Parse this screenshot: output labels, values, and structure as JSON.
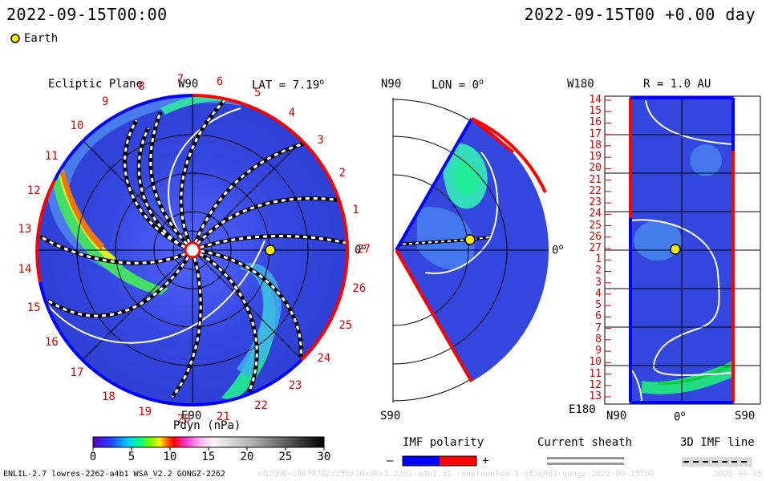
{
  "header": {
    "datetime_left": "2022-09-15T00:00",
    "datetime_right": "2022-09-15T00 +0.00 day",
    "earth_label": "Earth"
  },
  "colors": {
    "disk_bg": "#3344dd",
    "cme_core": "#cc6600",
    "sector_red": "#ff0000",
    "sector_blue": "#0000ff",
    "earth_fill": "#ffee00"
  },
  "chart_data": [
    {
      "type": "heatmap",
      "title": "Ecliptic Plane",
      "top_label": "W90",
      "bottom_label": "E90",
      "right_label": "0",
      "lat_label": "LAT = 7.19",
      "degree_mark": "o",
      "sector_labels": [
        "1",
        "2",
        "3",
        "4",
        "5",
        "6",
        "7",
        "8",
        "9",
        "10",
        "11",
        "12",
        "13",
        "14",
        "15",
        "16",
        "17",
        "18",
        "19",
        "20",
        "21",
        "22",
        "23",
        "24",
        "25",
        "26",
        "27"
      ],
      "earth_position": {
        "radius_au": 1.0,
        "longitude_deg": 0
      }
    },
    {
      "type": "heatmap",
      "title": "LON = 0",
      "degree_mark": "o",
      "top_label": "N90",
      "bottom_label": "S90",
      "right_label": "0"
    },
    {
      "type": "heatmap",
      "title": "R = 1.0 AU",
      "degree_mark": "o",
      "top_left_label": "W180",
      "bottom_left_label": "E180",
      "y_ticks": [
        "14",
        "15",
        "16",
        "17",
        "18",
        "19",
        "20",
        "21",
        "22",
        "23",
        "24",
        "25",
        "26",
        "27",
        "1",
        "2",
        "3",
        "4",
        "5",
        "6",
        "7",
        "8",
        "9",
        "10",
        "11",
        "12",
        "13"
      ],
      "x_labels": [
        "N90",
        "0",
        "S90"
      ]
    }
  ],
  "colorbar": {
    "title": "Pdyn (nPa)",
    "ticks": [
      "0",
      "5",
      "10",
      "15",
      "20",
      "25",
      "30"
    ],
    "range": [
      0,
      30
    ]
  },
  "legend": {
    "imf_title": "IMF polarity",
    "imf_minus": "–",
    "imf_plus": "+",
    "sheath_title": "Current sheath",
    "imf3d_title": "3D IMF line"
  },
  "footer": {
    "model": "ENLIL-2.7 lowres-2262-a4b1 WSA_V2.2 GONGZ-2262",
    "run_id": "UNIQUE=18074702/256x30x90x1.2262-a4b1.32--enptumnlcd-1-g53q0d2-gongz-2022-09-15T00",
    "run_date": "2022-09-15"
  }
}
